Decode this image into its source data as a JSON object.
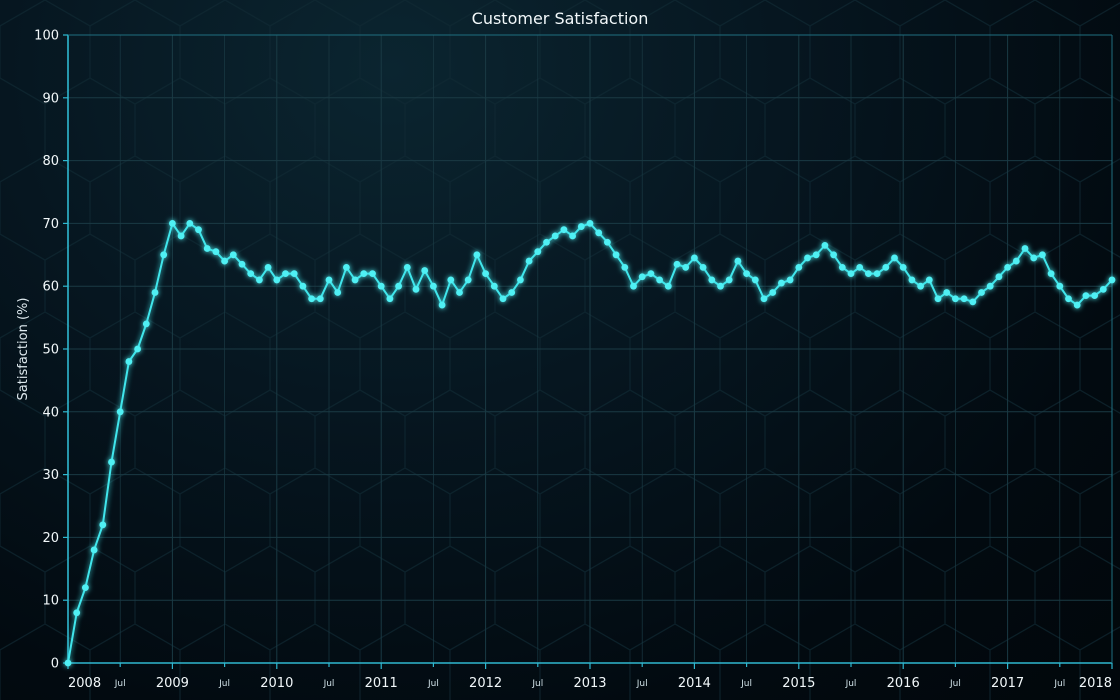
{
  "chart_data": {
    "type": "line",
    "title": "Customer Satisfaction",
    "xlabel": "",
    "ylabel": "Satisfaction (%)",
    "ylim": [
      0,
      100
    ],
    "yticks": [
      0,
      10,
      20,
      30,
      40,
      50,
      60,
      70,
      80,
      90,
      100
    ],
    "xlim": [
      "2008-01",
      "2018-01"
    ],
    "x_tick_labels": [
      {
        "date": "2008-01",
        "label": "2008",
        "kind": "year"
      },
      {
        "date": "2008-07",
        "label": "Jul",
        "kind": "minor"
      },
      {
        "date": "2009-01",
        "label": "2009",
        "kind": "year"
      },
      {
        "date": "2009-07",
        "label": "Jul",
        "kind": "minor"
      },
      {
        "date": "2010-01",
        "label": "2010",
        "kind": "year"
      },
      {
        "date": "2010-07",
        "label": "Jul",
        "kind": "minor"
      },
      {
        "date": "2011-01",
        "label": "2011",
        "kind": "year"
      },
      {
        "date": "2011-07",
        "label": "Jul",
        "kind": "minor"
      },
      {
        "date": "2012-01",
        "label": "2012",
        "kind": "year"
      },
      {
        "date": "2012-07",
        "label": "Jul",
        "kind": "minor"
      },
      {
        "date": "2013-01",
        "label": "2013",
        "kind": "year"
      },
      {
        "date": "2013-07",
        "label": "Jul",
        "kind": "minor"
      },
      {
        "date": "2014-01",
        "label": "2014",
        "kind": "year"
      },
      {
        "date": "2014-07",
        "label": "Jul",
        "kind": "minor"
      },
      {
        "date": "2015-01",
        "label": "2015",
        "kind": "year"
      },
      {
        "date": "2015-07",
        "label": "Jul",
        "kind": "minor"
      },
      {
        "date": "2016-01",
        "label": "2016",
        "kind": "year"
      },
      {
        "date": "2016-07",
        "label": "Jul",
        "kind": "minor"
      },
      {
        "date": "2017-01",
        "label": "2017",
        "kind": "year"
      },
      {
        "date": "2017-07",
        "label": "Jul",
        "kind": "minor"
      },
      {
        "date": "2018-01",
        "label": "2018",
        "kind": "year"
      }
    ],
    "grid": true,
    "legend": "none",
    "colors": {
      "line": "#3fe6ec",
      "marker": "#4ff0f4",
      "axis": "#2fb8d0",
      "grid": "#1a3a44",
      "background": "#020a10"
    },
    "series": [
      {
        "x": [
          "2008-01",
          "2008-02",
          "2008-03",
          "2008-04",
          "2008-05",
          "2008-06",
          "2008-07",
          "2008-08",
          "2008-09",
          "2008-10",
          "2008-11",
          "2008-12",
          "2009-01",
          "2009-02",
          "2009-03",
          "2009-04",
          "2009-05",
          "2009-06",
          "2009-07",
          "2009-08",
          "2009-09",
          "2009-10",
          "2009-11",
          "2009-12",
          "2010-01",
          "2010-02",
          "2010-03",
          "2010-04",
          "2010-05",
          "2010-06",
          "2010-07",
          "2010-08",
          "2010-09",
          "2010-10",
          "2010-11",
          "2010-12",
          "2011-01",
          "2011-02",
          "2011-03",
          "2011-04",
          "2011-05",
          "2011-06",
          "2011-07",
          "2011-08",
          "2011-09",
          "2011-10",
          "2011-11",
          "2011-12",
          "2012-01",
          "2012-02",
          "2012-03",
          "2012-04",
          "2012-05",
          "2012-06",
          "2012-07",
          "2012-08",
          "2012-09",
          "2012-10",
          "2012-11",
          "2012-12",
          "2013-01",
          "2013-02",
          "2013-03",
          "2013-04",
          "2013-05",
          "2013-06",
          "2013-07",
          "2013-08",
          "2013-09",
          "2013-10",
          "2013-11",
          "2013-12",
          "2014-01",
          "2014-02",
          "2014-03",
          "2014-04",
          "2014-05",
          "2014-06",
          "2014-07",
          "2014-08",
          "2014-09",
          "2014-10",
          "2014-11",
          "2014-12",
          "2015-01",
          "2015-02",
          "2015-03",
          "2015-04",
          "2015-05",
          "2015-06",
          "2015-07",
          "2015-08",
          "2015-09",
          "2015-10",
          "2015-11",
          "2015-12",
          "2016-01",
          "2016-02",
          "2016-03",
          "2016-04",
          "2016-05",
          "2016-06",
          "2016-07",
          "2016-08",
          "2016-09",
          "2016-10",
          "2016-11",
          "2016-12",
          "2017-01",
          "2017-02",
          "2017-03",
          "2017-04",
          "2017-05",
          "2017-06",
          "2017-07",
          "2017-08",
          "2017-09",
          "2017-10",
          "2017-11",
          "2017-12",
          "2018-01"
        ],
        "values": [
          0,
          8,
          12,
          18,
          22,
          32,
          40,
          48,
          50,
          54,
          59,
          65,
          70,
          68,
          70,
          69,
          66,
          65.5,
          64,
          65,
          63.5,
          62,
          61,
          63,
          61,
          62,
          62,
          60,
          58,
          58,
          61,
          59,
          63,
          61,
          62,
          62,
          60,
          58,
          60,
          63,
          59.5,
          62.5,
          60,
          57,
          61,
          59,
          61,
          65,
          62,
          60,
          58,
          59,
          61,
          64,
          65.5,
          67,
          68,
          69,
          68,
          69.5,
          70,
          68.5,
          67,
          65,
          63,
          60,
          61.5,
          62,
          61,
          60,
          63.5,
          63,
          64.5,
          63,
          61,
          60,
          61,
          64,
          62,
          61,
          58,
          59,
          60.5,
          61,
          63,
          64.5,
          65,
          66.5,
          65,
          63,
          62,
          63,
          62,
          62,
          63,
          64.5,
          63,
          61,
          60,
          61,
          58,
          59,
          58,
          58,
          57.5,
          59,
          60,
          61.5,
          63,
          64,
          66,
          64.5,
          65,
          62,
          60,
          58,
          57,
          58.5,
          58.5,
          59.5,
          61
        ]
      }
    ]
  }
}
